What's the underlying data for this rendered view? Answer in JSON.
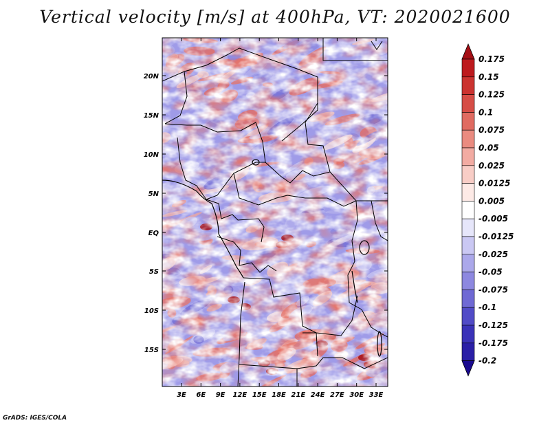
{
  "title": "Vertical velocity [m/s] at 400hPa, VT: 2020021600",
  "footer": "GrADS: IGES/COLA",
  "map": {
    "lat_labels": [
      "20N",
      "15N",
      "10N",
      "5N",
      "EQ",
      "5S",
      "10S",
      "15S"
    ],
    "lon_labels": [
      "3E",
      "6E",
      "9E",
      "12E",
      "15E",
      "18E",
      "21E",
      "24E",
      "27E",
      "30E",
      "33E"
    ]
  },
  "colorbar": {
    "labels": [
      "0.175",
      "0.15",
      "0.125",
      "0.1",
      "0.075",
      "0.05",
      "0.025",
      "0.0125",
      "0.005",
      "-0.005",
      "-0.0125",
      "-0.025",
      "-0.05",
      "-0.075",
      "-0.1",
      "-0.125",
      "-0.175",
      "-0.2"
    ],
    "colors": [
      "#a50f15",
      "#bd1a1e",
      "#cb3330",
      "#d64d46",
      "#e06b61",
      "#ea8b80",
      "#f2aba2",
      "#f8cdc6",
      "#fdeae6",
      "#ffffff",
      "#e6e6fa",
      "#cac8f3",
      "#aba8ea",
      "#8d88e0",
      "#6f69d4",
      "#514bc7",
      "#3a32b8",
      "#2a1fa6",
      "#1a0a8f"
    ]
  },
  "colors": {
    "background": "#ffffff",
    "border": "#000000",
    "positive": "#e05a50",
    "negative": "#6f69d4"
  }
}
